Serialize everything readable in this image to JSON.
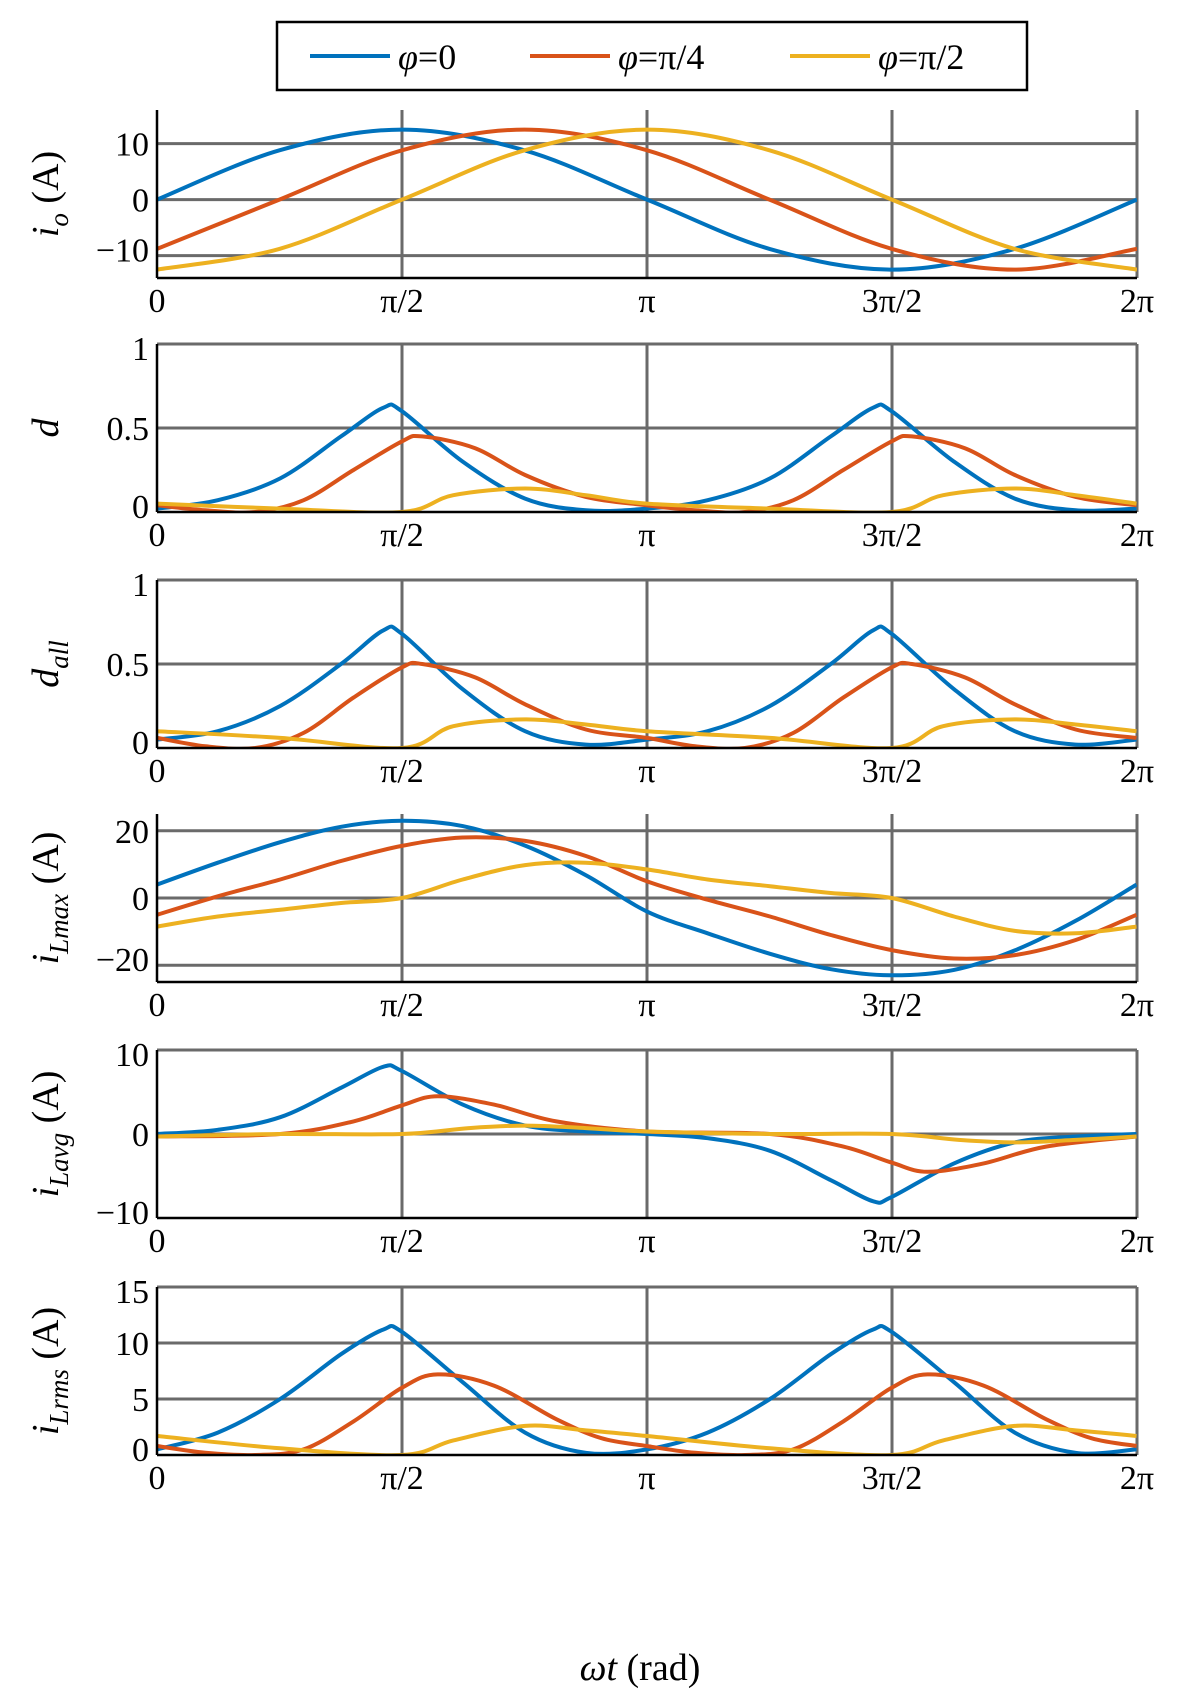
{
  "figure_title": "",
  "legend": {
    "entries": [
      {
        "phi": "φ",
        "rest": "=0",
        "color": "#0072BD"
      },
      {
        "phi": "φ",
        "rest": "=π/4",
        "color": "#D95319"
      },
      {
        "phi": "φ",
        "rest": "=π/2",
        "color": "#EDB120"
      }
    ]
  },
  "xaxis": {
    "label_var": "ωt",
    "label_unit": " (rad)",
    "tick_labels": [
      "0",
      "π/2",
      "π",
      "3π/2",
      "2π"
    ],
    "tick_values": [
      0,
      1.5708,
      3.1416,
      4.7124,
      6.2832
    ],
    "range": [
      0,
      6.2832
    ]
  },
  "colors": {
    "grid": "#6a6a6a",
    "axis": "#000000",
    "series": [
      "#0072BD",
      "#D95319",
      "#EDB120"
    ]
  },
  "chart_data": [
    {
      "type": "line",
      "ylabel_main": "i",
      "ylabel_sub": "o",
      "ylabel_unit": " (A)",
      "ylim": [
        -14,
        16
      ],
      "yticks": [
        -10,
        0,
        10
      ],
      "ytick_labels": [
        "−10",
        "0",
        "10"
      ],
      "xlabel": "ωt (rad)",
      "grid": true,
      "series": [
        {
          "name": "φ=0",
          "x": [
            0,
            0.785,
            1.571,
            2.356,
            3.142,
            3.927,
            4.712,
            5.498,
            6.283
          ],
          "y": [
            0,
            8.8,
            12.5,
            8.8,
            0,
            -8.8,
            -12.5,
            -8.8,
            0
          ]
        },
        {
          "name": "φ=π/4",
          "x": [
            0,
            0.785,
            1.571,
            2.356,
            3.142,
            3.927,
            4.712,
            5.498,
            6.283
          ],
          "y": [
            -8.8,
            0,
            8.8,
            12.5,
            8.8,
            0,
            -8.8,
            -12.5,
            -8.8
          ]
        },
        {
          "name": "φ=π/2",
          "x": [
            0,
            0.785,
            1.571,
            2.356,
            3.142,
            3.927,
            4.712,
            5.498,
            6.283
          ],
          "y": [
            -12.5,
            -8.8,
            0,
            8.8,
            12.5,
            8.8,
            0,
            -8.8,
            -12.5
          ]
        }
      ]
    },
    {
      "type": "line",
      "ylabel_main": "d",
      "ylabel_sub": "",
      "ylabel_unit": "",
      "ylim": [
        0,
        1
      ],
      "yticks": [
        0,
        0.5,
        1
      ],
      "ytick_labels": [
        "0",
        "0.5",
        "1"
      ],
      "xlabel": "ωt (rad)",
      "grid": true,
      "series": [
        {
          "name": "φ=0",
          "x": [
            0,
            0.39,
            0.79,
            1.18,
            1.45,
            1.57,
            1.96,
            2.36,
            2.75,
            3.14,
            3.53,
            3.93,
            4.32,
            4.59,
            4.71,
            5.11,
            5.5,
            5.89,
            6.28
          ],
          "y": [
            0.02,
            0.07,
            0.2,
            0.45,
            0.62,
            0.6,
            0.3,
            0.08,
            0.01,
            0.02,
            0.07,
            0.2,
            0.45,
            0.62,
            0.6,
            0.3,
            0.08,
            0.01,
            0.02
          ]
        },
        {
          "name": "φ=π/4",
          "x": [
            0,
            0.31,
            0.63,
            0.94,
            1.26,
            1.57,
            1.7,
            2.04,
            2.36,
            2.75,
            3.14,
            3.45,
            3.77,
            4.08,
            4.4,
            4.71,
            4.84,
            5.18,
            5.5,
            5.89,
            6.28
          ],
          "y": [
            0.04,
            0.01,
            0.0,
            0.07,
            0.25,
            0.42,
            0.45,
            0.38,
            0.22,
            0.09,
            0.04,
            0.01,
            0.0,
            0.07,
            0.25,
            0.42,
            0.45,
            0.38,
            0.22,
            0.09,
            0.04
          ]
        },
        {
          "name": "φ=π/2",
          "x": [
            0,
            0.79,
            1.57,
            1.9,
            2.36,
            2.75,
            3.14,
            3.93,
            4.71,
            5.04,
            5.5,
            5.89,
            6.28
          ],
          "y": [
            0.05,
            0.02,
            0.0,
            0.1,
            0.14,
            0.1,
            0.05,
            0.02,
            0.0,
            0.1,
            0.14,
            0.1,
            0.05
          ]
        }
      ]
    },
    {
      "type": "line",
      "ylabel_main": "d",
      "ylabel_sub": "all",
      "ylabel_unit": "",
      "ylim": [
        0,
        1
      ],
      "yticks": [
        0,
        0.5,
        1
      ],
      "ytick_labels": [
        "0",
        "0.5",
        "1"
      ],
      "xlabel": "ωt (rad)",
      "grid": true,
      "series": [
        {
          "name": "φ=0",
          "x": [
            0,
            0.39,
            0.79,
            1.18,
            1.45,
            1.57,
            1.96,
            2.36,
            2.75,
            3.14,
            3.53,
            3.93,
            4.32,
            4.59,
            4.71,
            5.11,
            5.5,
            5.89,
            6.28
          ],
          "y": [
            0.05,
            0.1,
            0.25,
            0.5,
            0.7,
            0.68,
            0.35,
            0.1,
            0.02,
            0.05,
            0.1,
            0.25,
            0.5,
            0.7,
            0.68,
            0.35,
            0.1,
            0.02,
            0.05
          ]
        },
        {
          "name": "φ=π/4",
          "x": [
            0,
            0.31,
            0.63,
            0.94,
            1.26,
            1.57,
            1.7,
            2.04,
            2.36,
            2.75,
            3.14,
            3.45,
            3.77,
            4.08,
            4.4,
            4.71,
            4.84,
            5.18,
            5.5,
            5.89,
            6.28
          ],
          "y": [
            0.06,
            0.01,
            0.0,
            0.09,
            0.3,
            0.48,
            0.5,
            0.42,
            0.26,
            0.11,
            0.06,
            0.01,
            0.0,
            0.09,
            0.3,
            0.48,
            0.5,
            0.42,
            0.26,
            0.11,
            0.06
          ]
        },
        {
          "name": "φ=π/2",
          "x": [
            0,
            0.79,
            1.57,
            1.9,
            2.36,
            2.75,
            3.14,
            3.93,
            4.71,
            5.04,
            5.5,
            5.89,
            6.28
          ],
          "y": [
            0.1,
            0.06,
            0.0,
            0.13,
            0.17,
            0.14,
            0.1,
            0.06,
            0.0,
            0.13,
            0.17,
            0.14,
            0.1
          ]
        }
      ]
    },
    {
      "type": "line",
      "ylabel_main": "i",
      "ylabel_sub": "Lmax",
      "ylabel_unit": " (A)",
      "ylim": [
        -25,
        25
      ],
      "yticks": [
        -20,
        0,
        20
      ],
      "ytick_labels": [
        "−20",
        "0",
        "20"
      ],
      "xlabel": "ωt (rad)",
      "grid": true,
      "series": [
        {
          "name": "φ=0",
          "x": [
            0,
            0.39,
            0.79,
            1.18,
            1.57,
            1.96,
            2.36,
            2.75,
            3.14,
            3.53,
            3.93,
            4.32,
            4.71,
            5.11,
            5.5,
            5.89,
            6.28
          ],
          "y": [
            4,
            10.5,
            16.6,
            21.2,
            23,
            21.4,
            15.6,
            6.8,
            -4,
            -10.5,
            -16.6,
            -21.2,
            -23,
            -21.4,
            -15.6,
            -6.8,
            4
          ]
        },
        {
          "name": "φ=π/4",
          "x": [
            0,
            0.39,
            0.79,
            1.18,
            1.57,
            1.96,
            2.36,
            2.75,
            3.14,
            3.53,
            3.93,
            4.32,
            4.71,
            5.11,
            5.5,
            5.89,
            6.28
          ],
          "y": [
            -5,
            0.5,
            5.5,
            11,
            15.5,
            18,
            17,
            12.5,
            5,
            -0.5,
            -5.5,
            -11,
            -15.5,
            -18,
            -17,
            -12.5,
            -5
          ]
        },
        {
          "name": "φ=π/2",
          "x": [
            0,
            0.39,
            0.79,
            1.18,
            1.57,
            1.96,
            2.36,
            2.75,
            3.14,
            3.53,
            3.93,
            4.32,
            4.71,
            5.11,
            5.5,
            5.89,
            6.28
          ],
          "y": [
            -8.5,
            -5.5,
            -3.5,
            -1.5,
            0,
            5.5,
            9.8,
            10.5,
            8.5,
            5.5,
            3.5,
            1.5,
            0,
            -5.5,
            -9.8,
            -10.5,
            -8.5
          ]
        }
      ]
    },
    {
      "type": "line",
      "ylabel_main": "i",
      "ylabel_sub": "Lavg",
      "ylabel_unit": " (A)",
      "ylim": [
        -10,
        10
      ],
      "yticks": [
        -10,
        0,
        10
      ],
      "ytick_labels": [
        "−10",
        "0",
        "10"
      ],
      "xlabel": "ωt (rad)",
      "grid": true,
      "series": [
        {
          "name": "φ=0",
          "x": [
            0,
            0.39,
            0.79,
            1.18,
            1.45,
            1.57,
            1.96,
            2.36,
            2.75,
            3.14,
            3.53,
            3.93,
            4.32,
            4.59,
            4.71,
            5.11,
            5.5,
            5.89,
            6.28
          ],
          "y": [
            0,
            0.5,
            2,
            5.5,
            8,
            7.5,
            3.5,
            1,
            0.3,
            0,
            -0.5,
            -2,
            -5.5,
            -8,
            -7.5,
            -3.5,
            -1,
            -0.3,
            0
          ]
        },
        {
          "name": "φ=π/4",
          "x": [
            0,
            0.79,
            1.26,
            1.57,
            1.8,
            2.16,
            2.56,
            3.14,
            3.93,
            4.4,
            4.71,
            4.94,
            5.3,
            5.7,
            6.28
          ],
          "y": [
            -0.3,
            0,
            1.5,
            3.4,
            4.5,
            3.5,
            1.5,
            0.3,
            0,
            -1.5,
            -3.4,
            -4.5,
            -3.5,
            -1.5,
            -0.3
          ]
        },
        {
          "name": "φ=π/2",
          "x": [
            0,
            0.79,
            1.57,
            2.0,
            2.36,
            2.75,
            3.14,
            3.93,
            4.71,
            5.14,
            5.5,
            5.89,
            6.28
          ],
          "y": [
            -0.3,
            0,
            0,
            0.7,
            1,
            0.7,
            0.3,
            0,
            0,
            -0.7,
            -1,
            -0.7,
            -0.3
          ]
        }
      ]
    },
    {
      "type": "line",
      "ylabel_main": "i",
      "ylabel_sub": "Lrms",
      "ylabel_unit": " (A)",
      "ylim": [
        0,
        15
      ],
      "yticks": [
        0,
        5,
        10,
        15
      ],
      "ytick_labels": [
        "0",
        "5",
        "10",
        "15"
      ],
      "xlabel": "ωt (rad)",
      "grid": true,
      "series": [
        {
          "name": "φ=0",
          "x": [
            0,
            0.39,
            0.79,
            1.18,
            1.45,
            1.57,
            1.96,
            2.36,
            2.75,
            3.14,
            3.53,
            3.93,
            4.32,
            4.59,
            4.71,
            5.11,
            5.5,
            5.89,
            6.28
          ],
          "y": [
            0.5,
            2,
            5,
            9,
            11.2,
            11,
            6.5,
            2,
            0.2,
            0.5,
            2,
            5,
            9,
            11.2,
            11,
            6.5,
            2,
            0.2,
            0.5
          ]
        },
        {
          "name": "φ=π/4",
          "x": [
            0,
            0.31,
            0.63,
            0.94,
            1.26,
            1.57,
            1.8,
            2.16,
            2.56,
            2.85,
            3.14,
            3.45,
            3.77,
            4.08,
            4.4,
            4.71,
            4.94,
            5.3,
            5.7,
            5.99,
            6.28
          ],
          "y": [
            0.8,
            0.2,
            0,
            0.5,
            3,
            6,
            7.2,
            6.2,
            3.2,
            1.5,
            0.8,
            0.2,
            0,
            0.5,
            3,
            6,
            7.2,
            6.2,
            3.2,
            1.5,
            0.8
          ]
        },
        {
          "name": "φ=π/2",
          "x": [
            0,
            0.79,
            1.57,
            1.9,
            2.36,
            2.75,
            3.14,
            3.93,
            4.71,
            5.04,
            5.5,
            5.89,
            6.28
          ],
          "y": [
            1.7,
            0.6,
            0,
            1.3,
            2.6,
            2.2,
            1.7,
            0.6,
            0,
            1.3,
            2.6,
            2.2,
            1.7
          ]
        }
      ]
    }
  ]
}
